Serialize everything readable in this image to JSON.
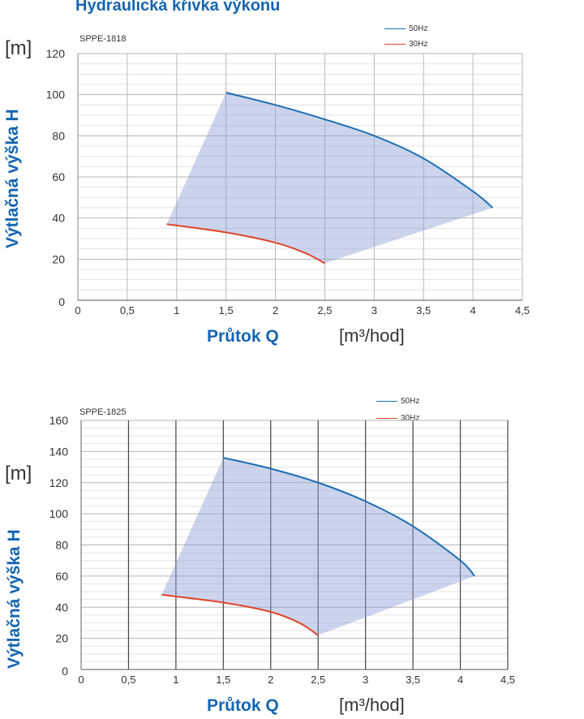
{
  "page_title": "Hydraulická křivka výkonu",
  "colors": {
    "f50": "#1f6fb4",
    "f30": "#e0452a",
    "fill": "#8d9fd6",
    "title": "#1565b0"
  },
  "chart_data": [
    {
      "type": "line",
      "model": "SPPE-1818",
      "ylabel": "Výtlačná výška H",
      "yunit": "[m]",
      "xlabel": "Průtok Q",
      "xunit": "[m³/hod]",
      "xlim": [
        0,
        4.5
      ],
      "ylim": [
        0,
        120
      ],
      "xticks": [
        "0",
        "0,5",
        "1",
        "1,5",
        "2",
        "2,5",
        "3",
        "3,5",
        "4",
        "4,5"
      ],
      "yticks": [
        "0",
        "20",
        "40",
        "60",
        "80",
        "100",
        "120"
      ],
      "legend": {
        "position": "top-right",
        "entries": [
          "50Hz",
          "30Hz"
        ]
      },
      "series": [
        {
          "name": "50Hz",
          "x": [
            1.5,
            2,
            2.5,
            3,
            3.5,
            4,
            4.2
          ],
          "y": [
            101,
            95,
            88,
            80,
            69,
            53,
            45
          ]
        },
        {
          "name": "30Hz",
          "x": [
            0.9,
            1.5,
            2,
            2.3,
            2.5
          ],
          "y": [
            37,
            33,
            28,
            23,
            18
          ]
        }
      ]
    },
    {
      "type": "line",
      "model": "SPPE-1825",
      "ylabel": "Výtlačná výška H",
      "yunit": "[m]",
      "xlabel": "Průtok Q",
      "xunit": "[m³/hod]",
      "xlim": [
        0,
        4.5
      ],
      "ylim": [
        0,
        160
      ],
      "xticks": [
        "0",
        "0,5",
        "1",
        "1,5",
        "2",
        "2,5",
        "3",
        "3,5",
        "4",
        "4,5"
      ],
      "yticks": [
        "0",
        "20",
        "40",
        "60",
        "80",
        "100",
        "120",
        "140",
        "160"
      ],
      "legend": {
        "position": "top-right",
        "entries": [
          "50Hz",
          "30Hz"
        ]
      },
      "series": [
        {
          "name": "50Hz",
          "x": [
            1.5,
            2,
            2.5,
            3,
            3.5,
            4,
            4.15
          ],
          "y": [
            136,
            129,
            120,
            108,
            92,
            70,
            60
          ]
        },
        {
          "name": "30Hz",
          "x": [
            0.85,
            1.5,
            2,
            2.3,
            2.5
          ],
          "y": [
            48,
            43,
            37,
            30,
            22
          ]
        }
      ]
    }
  ]
}
